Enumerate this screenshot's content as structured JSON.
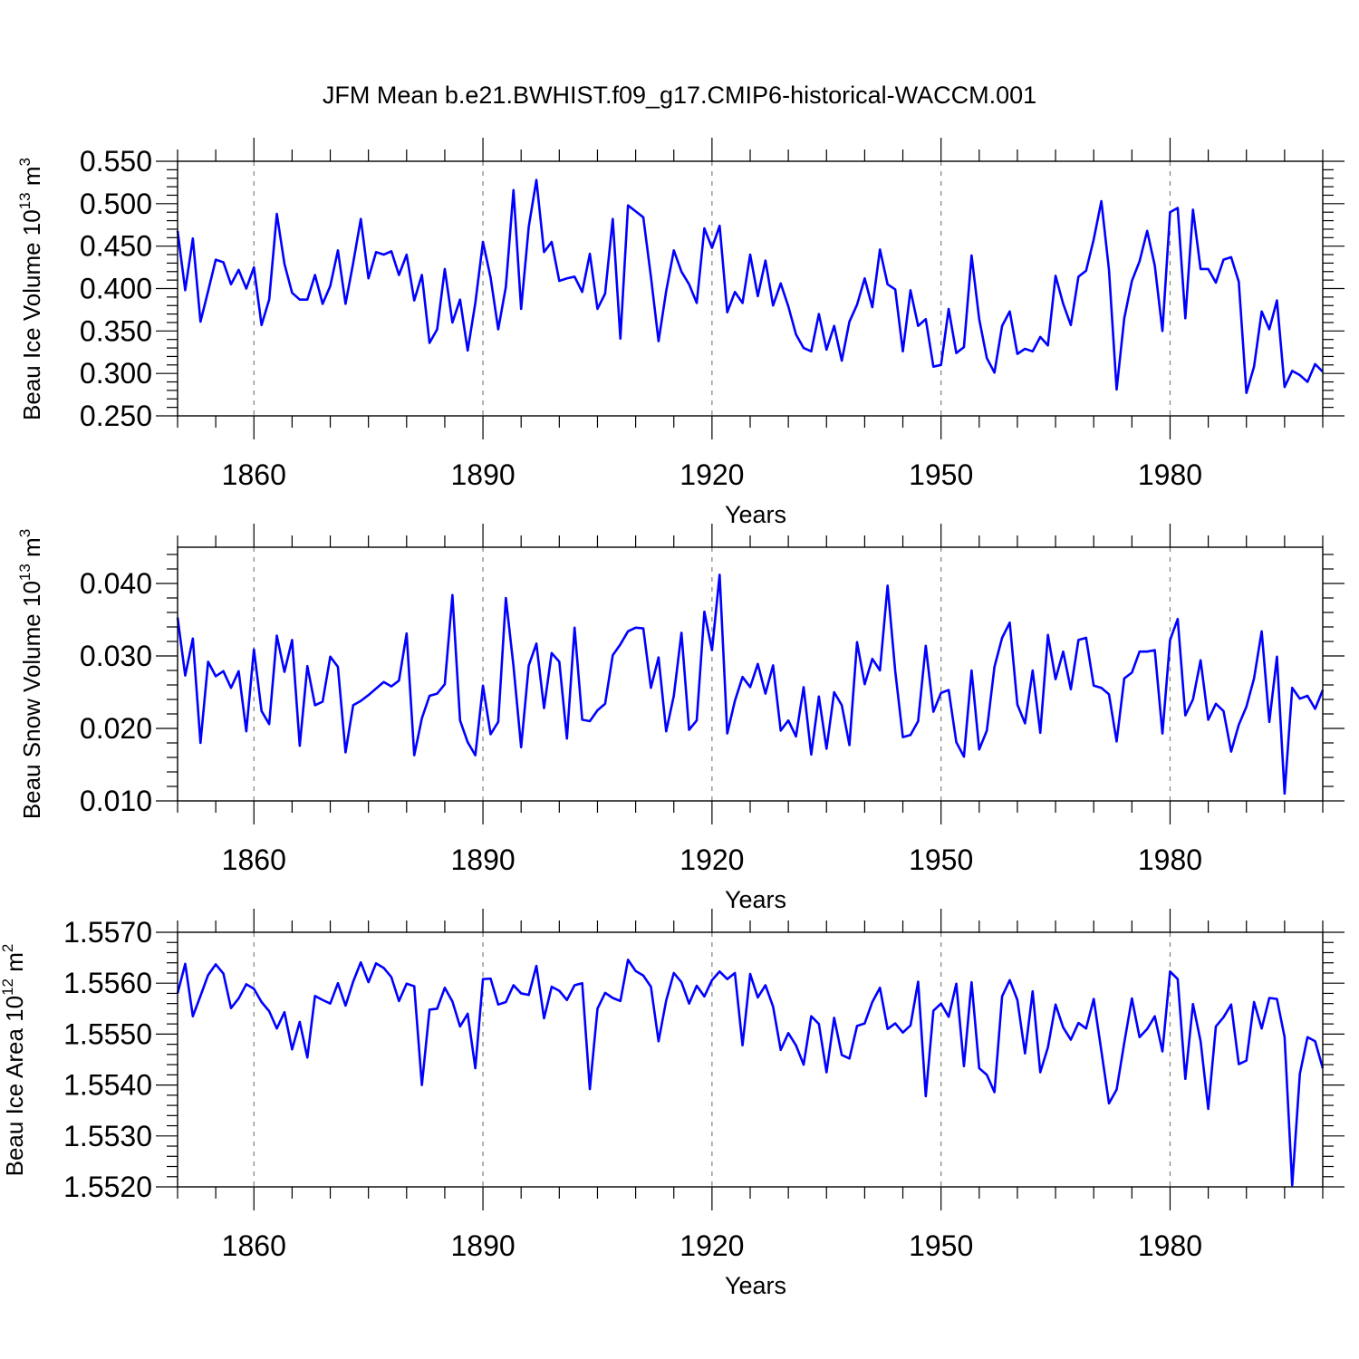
{
  "figure_title": "JFM Mean b.e21.BWHIST.f09_g17.CMIP6-historical-WACCM.001",
  "colors": {
    "line": "#0000ff",
    "axis": "#000000",
    "grid": "#7f7f7f"
  },
  "chart_data": [
    {
      "type": "line",
      "title": "JFM Mean b.e21.BWHIST.f09_g17.CMIP6-historical-WACCM.001",
      "ylabel": {
        "main": "Beau Ice Volume 10",
        "exp": "13",
        "tail": " m",
        "unit_exp": "3"
      },
      "xlabel": "Years",
      "xlim": [
        1850,
        2000
      ],
      "ylim": [
        0.25,
        0.55
      ],
      "x_ticks": [
        1860,
        1890,
        1920,
        1950,
        1980
      ],
      "x_tick_labels": [
        "1860",
        "1890",
        "1920",
        "1950",
        "1980"
      ],
      "y_ticks": [
        0.25,
        0.3,
        0.35,
        0.4,
        0.45,
        0.5,
        0.55
      ],
      "y_tick_labels": [
        "0.250",
        "0.300",
        "0.350",
        "0.400",
        "0.450",
        "0.500",
        "0.550"
      ],
      "y_minor_step": 0.01,
      "grid": "vertical dashed at major x ticks",
      "x_start": 1850,
      "values": [
        0.468,
        0.398,
        0.459,
        0.361,
        0.397,
        0.434,
        0.431,
        0.405,
        0.422,
        0.4,
        0.425,
        0.357,
        0.387,
        0.488,
        0.429,
        0.395,
        0.387,
        0.387,
        0.416,
        0.382,
        0.403,
        0.445,
        0.382,
        0.43,
        0.482,
        0.412,
        0.443,
        0.44,
        0.444,
        0.416,
        0.44,
        0.386,
        0.416,
        0.336,
        0.352,
        0.423,
        0.36,
        0.387,
        0.327,
        0.383,
        0.455,
        0.413,
        0.352,
        0.402,
        0.516,
        0.376,
        0.473,
        0.528,
        0.443,
        0.455,
        0.409,
        0.412,
        0.414,
        0.396,
        0.441,
        0.376,
        0.394,
        0.482,
        0.341,
        0.498,
        0.491,
        0.484,
        0.414,
        0.338,
        0.397,
        0.445,
        0.42,
        0.405,
        0.383,
        0.471,
        0.448,
        0.474,
        0.372,
        0.396,
        0.383,
        0.44,
        0.391,
        0.433,
        0.38,
        0.406,
        0.379,
        0.346,
        0.33,
        0.326,
        0.37,
        0.328,
        0.356,
        0.315,
        0.361,
        0.381,
        0.412,
        0.378,
        0.446,
        0.405,
        0.399,
        0.326,
        0.398,
        0.356,
        0.364,
        0.308,
        0.31,
        0.376,
        0.324,
        0.331,
        0.439,
        0.364,
        0.318,
        0.301,
        0.356,
        0.373,
        0.323,
        0.329,
        0.326,
        0.343,
        0.333,
        0.415,
        0.382,
        0.357,
        0.414,
        0.421,
        0.458,
        0.503,
        0.422,
        0.281,
        0.365,
        0.409,
        0.432,
        0.468,
        0.427,
        0.35,
        0.49,
        0.495,
        0.365,
        0.493,
        0.423,
        0.423,
        0.407,
        0.434,
        0.437,
        0.408,
        0.277,
        0.308,
        0.373,
        0.352,
        0.386,
        0.284,
        0.303,
        0.298,
        0.29,
        0.311,
        0.302
      ]
    },
    {
      "type": "line",
      "ylabel": {
        "main": "Beau Snow Volume 10",
        "exp": "13",
        "tail": " m",
        "unit_exp": "3"
      },
      "xlabel": "Years",
      "xlim": [
        1850,
        2000
      ],
      "ylim": [
        0.01,
        0.045
      ],
      "x_ticks": [
        1860,
        1890,
        1920,
        1950,
        1980
      ],
      "x_tick_labels": [
        "1860",
        "1890",
        "1920",
        "1950",
        "1980"
      ],
      "y_ticks": [
        0.01,
        0.02,
        0.03,
        0.04
      ],
      "y_tick_labels": [
        "0.010",
        "0.020",
        "0.030",
        "0.040"
      ],
      "y_minor_step": 0.002,
      "grid": "vertical dashed at major x ticks",
      "x_start": 1850,
      "values": [
        0.0353,
        0.0273,
        0.0324,
        0.018,
        0.0292,
        0.0272,
        0.0279,
        0.0256,
        0.0279,
        0.0196,
        0.0309,
        0.0224,
        0.0206,
        0.0328,
        0.0278,
        0.0322,
        0.0176,
        0.0286,
        0.0232,
        0.0237,
        0.0299,
        0.0285,
        0.0167,
        0.0232,
        0.0238,
        0.0246,
        0.0255,
        0.0264,
        0.0258,
        0.0266,
        0.0331,
        0.0163,
        0.0214,
        0.0245,
        0.0248,
        0.0261,
        0.0384,
        0.0211,
        0.0181,
        0.0163,
        0.0259,
        0.0192,
        0.0209,
        0.038,
        0.0286,
        0.0174,
        0.0287,
        0.0317,
        0.0228,
        0.0304,
        0.0292,
        0.0186,
        0.0339,
        0.0212,
        0.021,
        0.0225,
        0.0234,
        0.0301,
        0.0316,
        0.0334,
        0.0339,
        0.0338,
        0.0256,
        0.0298,
        0.0196,
        0.0245,
        0.0332,
        0.0198,
        0.0211,
        0.0361,
        0.0308,
        0.0412,
        0.0193,
        0.0238,
        0.0271,
        0.0257,
        0.0289,
        0.0248,
        0.0287,
        0.0197,
        0.0211,
        0.0189,
        0.0257,
        0.0164,
        0.0244,
        0.0172,
        0.025,
        0.0232,
        0.0177,
        0.0319,
        0.0261,
        0.0296,
        0.028,
        0.0397,
        0.0279,
        0.0188,
        0.0191,
        0.021,
        0.0314,
        0.0223,
        0.0249,
        0.0253,
        0.0181,
        0.0161,
        0.028,
        0.0171,
        0.0197,
        0.0285,
        0.0325,
        0.0346,
        0.0233,
        0.0207,
        0.028,
        0.0194,
        0.0329,
        0.0268,
        0.0306,
        0.0254,
        0.0322,
        0.0325,
        0.0259,
        0.0256,
        0.0247,
        0.0182,
        0.0269,
        0.0277,
        0.0306,
        0.0306,
        0.0308,
        0.0193,
        0.0322,
        0.0351,
        0.0218,
        0.024,
        0.0294,
        0.0212,
        0.0234,
        0.0224,
        0.0168,
        0.0205,
        0.023,
        0.0269,
        0.0334,
        0.0209,
        0.0299,
        0.011,
        0.0256,
        0.0241,
        0.0245,
        0.0227,
        0.0253
      ]
    },
    {
      "type": "line",
      "ylabel": {
        "main": "Beau Ice Area 10",
        "exp": "12",
        "tail": " m",
        "unit_exp": "2"
      },
      "xlabel": "Years",
      "xlim": [
        1850,
        2000
      ],
      "ylim": [
        1.552,
        1.557
      ],
      "x_ticks": [
        1860,
        1890,
        1920,
        1950,
        1980
      ],
      "x_tick_labels": [
        "1860",
        "1890",
        "1920",
        "1950",
        "1980"
      ],
      "y_ticks": [
        1.552,
        1.553,
        1.554,
        1.555,
        1.556,
        1.557
      ],
      "y_tick_labels": [
        "1.5520",
        "1.5530",
        "1.5540",
        "1.5550",
        "1.5560",
        "1.5570"
      ],
      "y_minor_step": 0.0002,
      "grid": "vertical dashed at major x ticks",
      "x_start": 1850,
      "values": [
        1.5558,
        1.55638,
        1.55535,
        1.55575,
        1.55616,
        1.55637,
        1.55619,
        1.55551,
        1.5557,
        1.55598,
        1.55589,
        1.55563,
        1.55545,
        1.55511,
        1.55543,
        1.5547,
        1.55524,
        1.55454,
        1.55575,
        1.55567,
        1.5556,
        1.556,
        1.55556,
        1.55603,
        1.55641,
        1.55602,
        1.55639,
        1.5563,
        1.55612,
        1.55565,
        1.55599,
        1.55594,
        1.554,
        1.55548,
        1.5555,
        1.55591,
        1.55564,
        1.55515,
        1.5554,
        1.55433,
        1.55608,
        1.55609,
        1.55558,
        1.55563,
        1.55596,
        1.5558,
        1.55577,
        1.55634,
        1.55531,
        1.55593,
        1.55585,
        1.55567,
        1.55596,
        1.556,
        1.55392,
        1.5555,
        1.55581,
        1.55571,
        1.55565,
        1.55646,
        1.55624,
        1.55615,
        1.55593,
        1.55486,
        1.55566,
        1.5562,
        1.55602,
        1.5556,
        1.55595,
        1.55574,
        1.55606,
        1.55623,
        1.55608,
        1.5562,
        1.55478,
        1.55618,
        1.55572,
        1.55596,
        1.55554,
        1.55469,
        1.55502,
        1.55478,
        1.5544,
        1.55535,
        1.5552,
        1.55425,
        1.55532,
        1.55459,
        1.55452,
        1.55516,
        1.55521,
        1.55563,
        1.55591,
        1.5551,
        1.55521,
        1.55503,
        1.55517,
        1.55603,
        1.55378,
        1.55546,
        1.5556,
        1.55534,
        1.55599,
        1.55437,
        1.55602,
        1.55433,
        1.5542,
        1.55386,
        1.55574,
        1.55606,
        1.55567,
        1.55462,
        1.55584,
        1.55425,
        1.55474,
        1.55558,
        1.55513,
        1.55489,
        1.55522,
        1.55511,
        1.55569,
        1.55467,
        1.55364,
        1.55391,
        1.55483,
        1.5557,
        1.55494,
        1.5551,
        1.55535,
        1.55466,
        1.55623,
        1.55608,
        1.55412,
        1.55559,
        1.55486,
        1.55353,
        1.55515,
        1.55533,
        1.55558,
        1.55441,
        1.55448,
        1.55563,
        1.55511,
        1.55571,
        1.55569,
        1.55494,
        1.55203,
        1.55422,
        1.55494,
        1.55486,
        1.55433
      ]
    }
  ]
}
